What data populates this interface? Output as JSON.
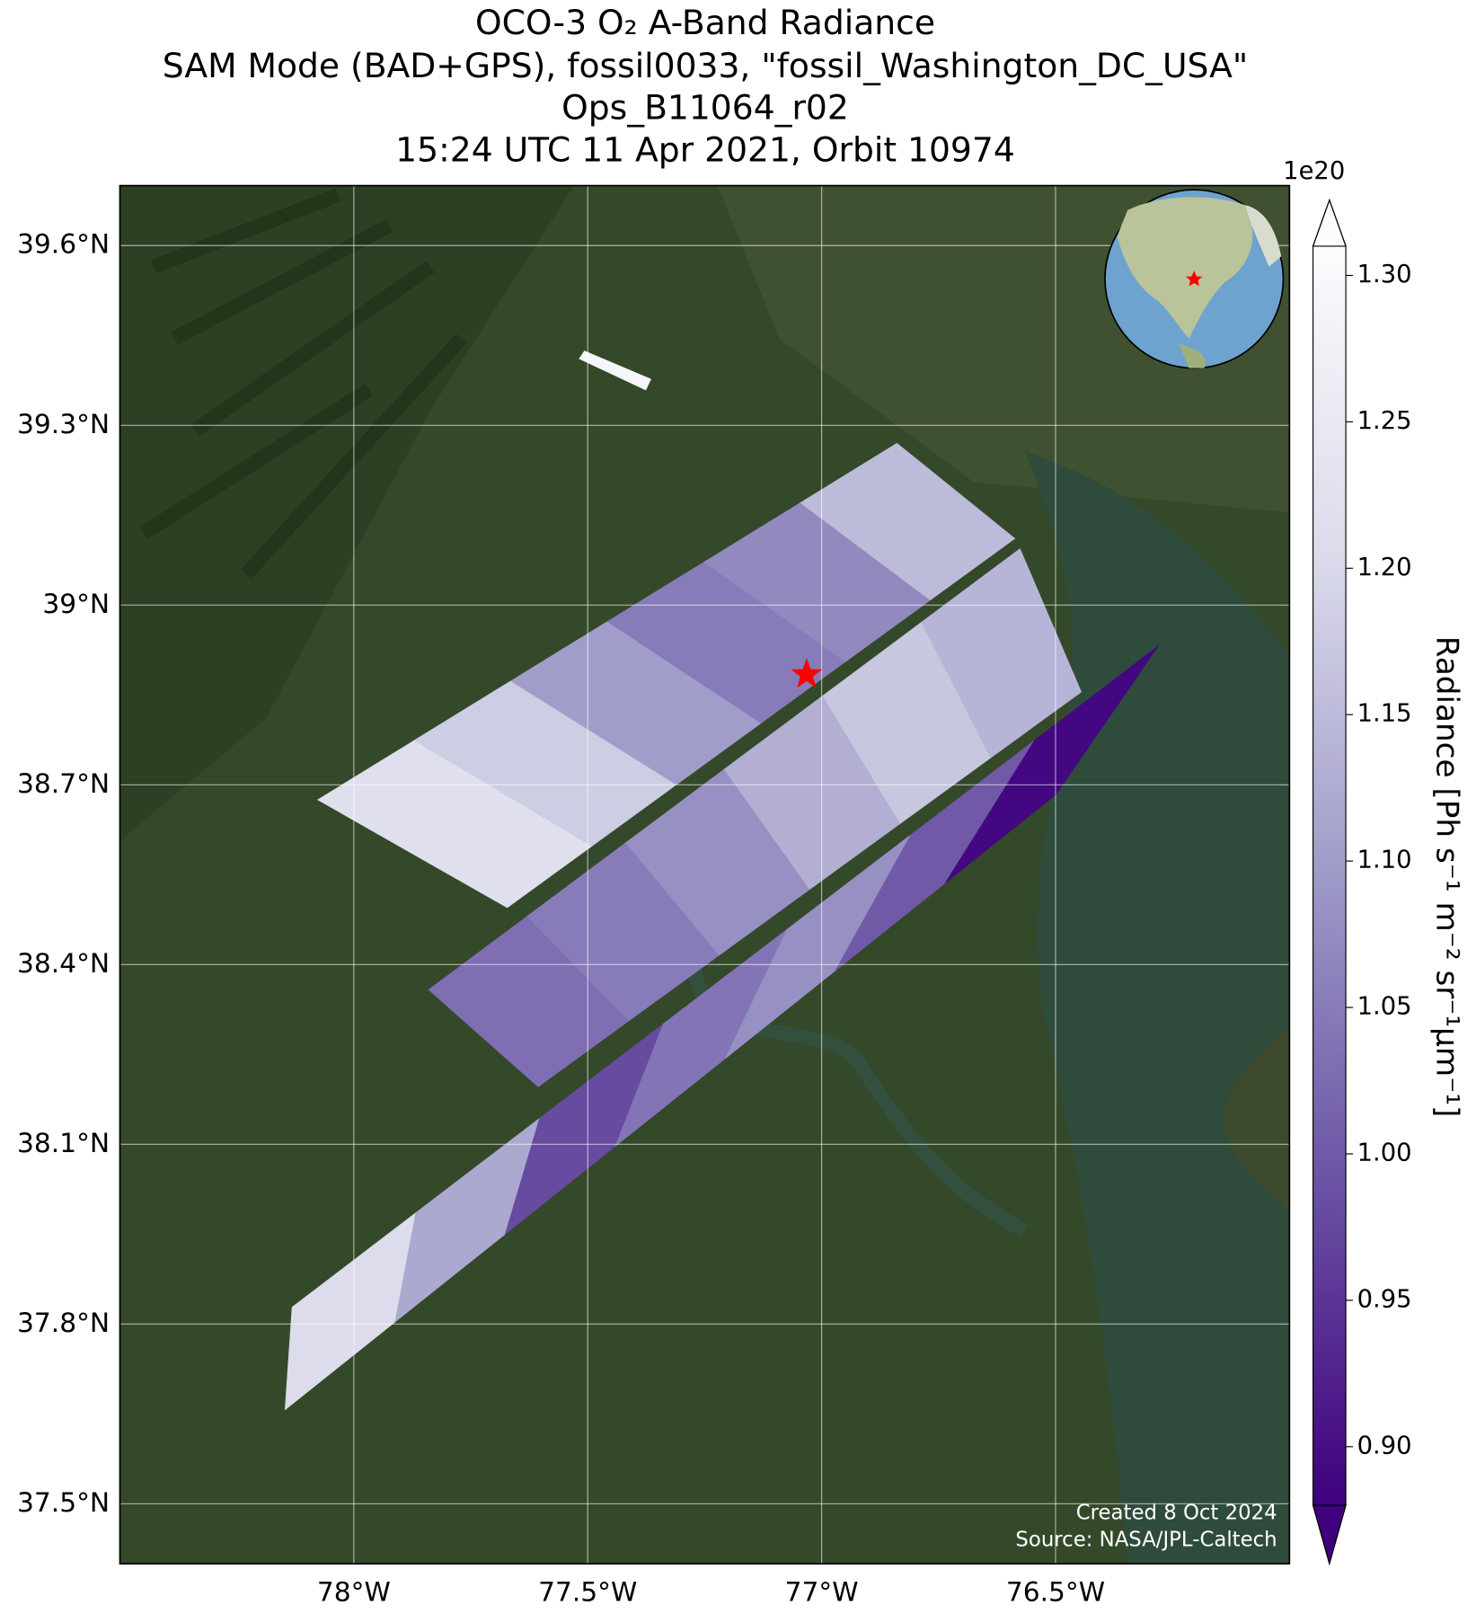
{
  "chart_data": {
    "type": "swath-map",
    "title": "OCO-3 O₂ A-Band Radiance",
    "subtitle": [
      "SAM Mode (BAD+GPS), fossil0033, \"fossil_Washington_DC_USA\"",
      "Ops_B11064_r02",
      "15:24 UTC 11 Apr 2021, Orbit 10974"
    ],
    "xlim": [
      -78.5,
      -76.0
    ],
    "ylim": [
      37.4,
      39.7
    ],
    "xticks": [
      {
        "value": -78,
        "label": "78°W"
      },
      {
        "value": -77.5,
        "label": "77.5°W"
      },
      {
        "value": -77,
        "label": "77°W"
      },
      {
        "value": -76.5,
        "label": "76.5°W"
      }
    ],
    "yticks": [
      {
        "value": 37.5,
        "label": "37.5°N"
      },
      {
        "value": 37.8,
        "label": "37.8°N"
      },
      {
        "value": 38.1,
        "label": "38.1°N"
      },
      {
        "value": 38.4,
        "label": "38.4°N"
      },
      {
        "value": 38.7,
        "label": "38.7°N"
      },
      {
        "value": 39,
        "label": "39°N"
      },
      {
        "value": 39.3,
        "label": "39.3°N"
      },
      {
        "value": 39.6,
        "label": "39.6°N"
      }
    ],
    "grid": true,
    "colors": [
      "#3f007d",
      "#6a51a3",
      "#9e9ac8",
      "#dadaeb",
      "#fcfbfd"
    ],
    "clim": [
      0.88,
      1.31
    ],
    "colorbar_ticks": [
      {
        "value": 0.9,
        "label": "0.90"
      },
      {
        "value": 0.95,
        "label": "0.95"
      },
      {
        "value": 1,
        "label": "1.00"
      },
      {
        "value": 1.05,
        "label": "1.05"
      },
      {
        "value": 1.1,
        "label": "1.10"
      },
      {
        "value": 1.15,
        "label": "1.15"
      },
      {
        "value": 1.2,
        "label": "1.20"
      },
      {
        "value": 1.25,
        "label": "1.25"
      },
      {
        "value": 1.3,
        "label": "1.30"
      }
    ],
    "colorbar_offset": "1e20",
    "colorbar_label": "Radiance [Ph s⁻¹ m⁻² sr⁻¹μm⁻¹]",
    "swaths": [
      {
        "top": [
          [
            -78.077,
            38.675
          ],
          [
            -76.839,
            39.27
          ]
        ],
        "bottom": [
          [
            -77.672,
            38.495
          ],
          [
            -76.587,
            39.111
          ]
        ],
        "values": [
          1.22,
          1.18,
          1.1,
          1.05,
          1.07,
          1.15
        ]
      },
      {
        "top": [
          [
            -77.84,
            38.358
          ],
          [
            -76.576,
            39.094
          ]
        ],
        "bottom": [
          [
            -77.606,
            38.196
          ],
          [
            -76.445,
            38.855
          ]
        ],
        "values": [
          1.03,
          1.05,
          1.08,
          1.13,
          1.17,
          1.14
        ]
      },
      {
        "top": [
          [
            -78.132,
            37.828
          ],
          [
            -76.28,
            38.932
          ]
        ],
        "bottom": [
          [
            -78.147,
            37.657
          ],
          [
            -76.5,
            38.683
          ]
        ],
        "values": [
          1.21,
          1.12,
          0.98,
          1.04,
          1.08,
          1.0,
          0.89
        ]
      },
      {
        "top": [
          [
            -77.507,
            39.424
          ],
          [
            -77.365,
            39.377
          ]
        ],
        "bottom": [
          [
            -77.518,
            39.411
          ],
          [
            -77.376,
            39.359
          ]
        ],
        "values": [
          1.29
        ]
      }
    ],
    "target": {
      "lon": -77.032,
      "lat": 38.884
    },
    "annotations": [
      "Created 8 Oct 2024",
      "Source: NASA/JPL-Caltech"
    ]
  }
}
